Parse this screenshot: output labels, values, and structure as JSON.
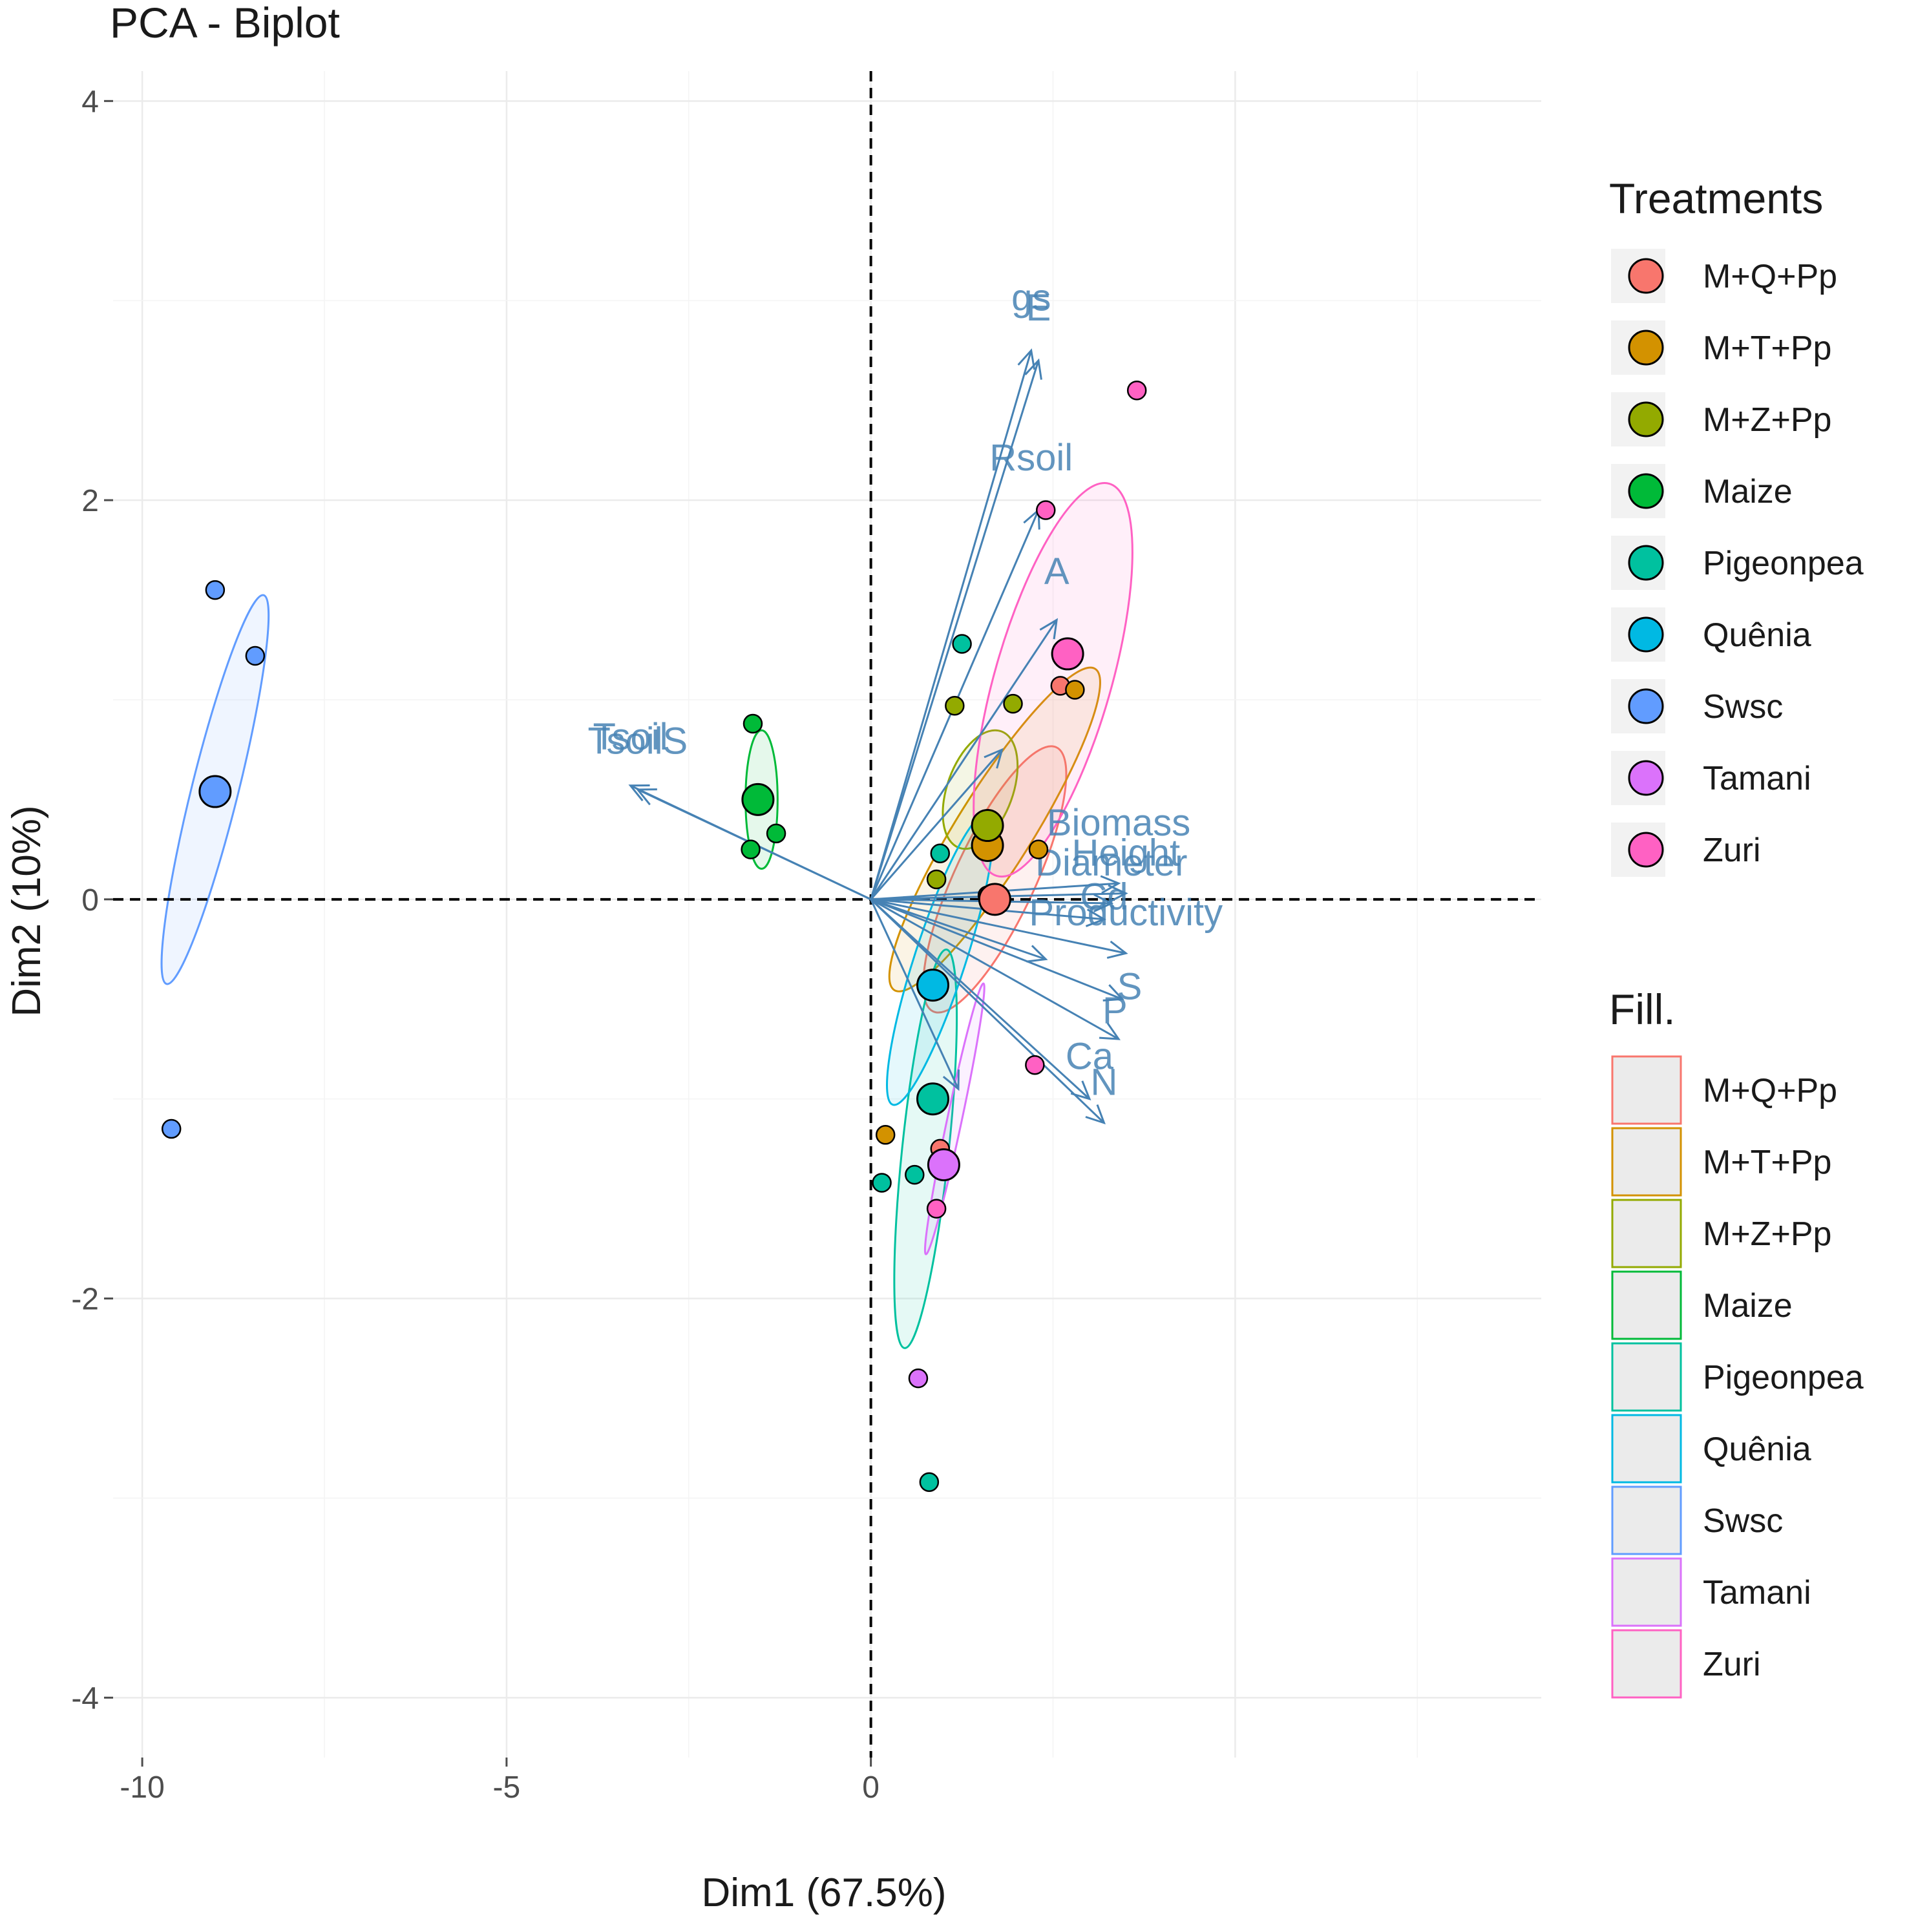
{
  "chart_data": {
    "type": "scatter",
    "title": "PCA - Biplot",
    "xlabel": "Dim1 (67.5%)",
    "ylabel": "Dim2 (10%)",
    "xlim": [
      -10.4,
      9.2
    ],
    "ylim": [
      -4.3,
      4.15
    ],
    "xticks": [
      -10,
      -5,
      0
    ],
    "xtick_labels": [
      "-10",
      "-5",
      "0"
    ],
    "yticks": [
      4,
      2,
      0,
      -2,
      -4
    ],
    "ytick_labels": [
      "4",
      "2",
      "0",
      "-2",
      "-4"
    ],
    "legend_position": "right",
    "legend_treatments_title": "Treatments",
    "legend_fill_title": "Fill.",
    "treatments": [
      "M+Q+Pp",
      "M+T+Pp",
      "M+Z+Pp",
      "Maize",
      "Pigeonpea",
      "Quênia",
      "Swsc",
      "Tamani",
      "Zuri"
    ],
    "colors": {
      "M+Q+Pp": "#F8766D",
      "M+T+Pp": "#D39200",
      "M+Z+Pp": "#93AA00",
      "Maize": "#00BA38",
      "Pigeonpea": "#00C19F",
      "Quênia": "#00B9E3",
      "Swsc": "#619CFF",
      "Tamani": "#DB72FB",
      "Zuri": "#FF61C3"
    },
    "groups": [
      {
        "name": "M+Q+Pp",
        "centroid": [
          1.7,
          0.0
        ],
        "points": [
          [
            2.6,
            1.07
          ],
          [
            1.6,
            0.02
          ],
          [
            0.95,
            -1.25
          ]
        ],
        "ellipse": {
          "cx": 1.7,
          "cy": 0.1,
          "rx": 2.0,
          "ry": 0.55,
          "angle": 65
        }
      },
      {
        "name": "M+T+Pp",
        "centroid": [
          1.6,
          0.27
        ],
        "points": [
          [
            2.3,
            0.25
          ],
          [
            2.8,
            1.05
          ],
          [
            0.2,
            -1.18
          ]
        ],
        "ellipse": {
          "cx": 1.7,
          "cy": 0.35,
          "rx": 2.6,
          "ry": 0.52,
          "angle": 58
        }
      },
      {
        "name": "M+Z+Pp",
        "centroid": [
          1.6,
          0.37
        ],
        "points": [
          [
            1.15,
            0.97
          ],
          [
            1.95,
            0.98
          ],
          [
            0.9,
            0.1
          ]
        ],
        "ellipse": {
          "cx": 1.5,
          "cy": 0.55,
          "rx": 0.85,
          "ry": 0.45,
          "angle": 70
        }
      },
      {
        "name": "Maize",
        "centroid": [
          -1.55,
          0.5
        ],
        "points": [
          [
            -1.62,
            0.88
          ],
          [
            -1.3,
            0.33
          ],
          [
            -1.65,
            0.25
          ]
        ],
        "ellipse": {
          "cx": -1.5,
          "cy": 0.5,
          "rx": 0.95,
          "ry": 0.22,
          "angle": 90
        }
      },
      {
        "name": "Pigeonpea",
        "centroid": [
          0.85,
          -1.0
        ],
        "points": [
          [
            1.25,
            1.28
          ],
          [
            0.6,
            -1.38
          ],
          [
            0.15,
            -1.42
          ],
          [
            0.8,
            -2.92
          ],
          [
            0.95,
            0.23
          ]
        ],
        "ellipse": {
          "cx": 0.75,
          "cy": -1.25,
          "rx": 2.75,
          "ry": 0.32,
          "angle": 84
        }
      },
      {
        "name": "Quênia",
        "centroid": [
          0.85,
          -0.43
        ],
        "points": [],
        "ellipse": {
          "cx": 0.95,
          "cy": -0.3,
          "rx": 2.1,
          "ry": 0.35,
          "angle": 72
        }
      },
      {
        "name": "Swsc",
        "centroid": [
          -9.0,
          0.54
        ],
        "points": [
          [
            -9.0,
            1.55
          ],
          [
            -8.45,
            1.22
          ],
          [
            -9.6,
            -1.15
          ]
        ],
        "ellipse": {
          "cx": -9.0,
          "cy": 0.55,
          "rx": 2.75,
          "ry": 0.32,
          "angle": 76
        }
      },
      {
        "name": "Tamani",
        "centroid": [
          1.0,
          -1.33
        ],
        "points": [
          [
            0.65,
            -2.4
          ]
        ],
        "ellipse": {
          "cx": 1.15,
          "cy": -1.1,
          "rx": 1.9,
          "ry": 0.1,
          "angle": 78
        }
      },
      {
        "name": "Zuri",
        "centroid": [
          2.7,
          1.23
        ],
        "points": [
          [
            3.65,
            2.55
          ],
          [
            2.4,
            1.95
          ],
          [
            2.25,
            -0.83
          ],
          [
            0.9,
            -1.55
          ]
        ],
        "ellipse": {
          "cx": 2.5,
          "cy": 1.1,
          "rx": 2.8,
          "ry": 0.8,
          "angle": 74
        }
      }
    ],
    "variables": [
      {
        "label": "gs",
        "end": [
          2.2,
          2.75
        ],
        "label_pos": [
          2.2,
          2.95
        ]
      },
      {
        "label": "E",
        "end": [
          2.3,
          2.7
        ],
        "label_pos": [
          2.3,
          2.9
        ]
      },
      {
        "label": "Rsoil",
        "end": [
          2.3,
          1.95
        ],
        "label_pos": [
          2.2,
          2.15
        ]
      },
      {
        "label": "A",
        "end": [
          2.55,
          1.4
        ],
        "label_pos": [
          2.55,
          1.58
        ]
      },
      {
        "label": "Tsoil",
        "end": [
          -3.3,
          0.57
        ],
        "label_pos": [
          -3.3,
          0.75
        ]
      },
      {
        "label": "TsoilS",
        "end": [
          -3.2,
          0.55
        ],
        "label_pos": [
          -3.2,
          0.73
        ]
      },
      {
        "label": "Biomass",
        "end": [
          3.4,
          0.08
        ],
        "label_pos": [
          3.4,
          0.32
        ]
      },
      {
        "label": "Height",
        "end": [
          3.5,
          0.03
        ],
        "label_pos": [
          3.5,
          0.17
        ]
      },
      {
        "label": "Diameter",
        "end": [
          3.3,
          -0.02
        ],
        "label_pos": [
          3.3,
          0.12
        ]
      },
      {
        "label": "Productivity",
        "end": [
          3.5,
          -0.27
        ],
        "label_pos": [
          3.5,
          -0.13
        ]
      },
      {
        "label": "Cd",
        "end": [
          3.2,
          -0.1
        ],
        "label_pos": [
          3.2,
          -0.05
        ]
      },
      {
        "label": "S",
        "end": [
          3.45,
          -0.5
        ],
        "label_pos": [
          3.55,
          -0.5
        ]
      },
      {
        "label": "P",
        "end": [
          3.4,
          -0.7
        ],
        "label_pos": [
          3.35,
          -0.62
        ]
      },
      {
        "label": "Ca",
        "end": [
          3.0,
          -1.0
        ],
        "label_pos": [
          3.0,
          -0.85
        ]
      },
      {
        "label": "N",
        "end": [
          3.2,
          -1.12
        ],
        "label_pos": [
          3.2,
          -0.98
        ]
      },
      {
        "label": "",
        "end": [
          1.8,
          0.75
        ],
        "label_pos": [
          1.8,
          0.75
        ]
      },
      {
        "label": "",
        "end": [
          1.2,
          -0.95
        ],
        "label_pos": [
          1.2,
          -0.95
        ]
      },
      {
        "label": "",
        "end": [
          2.4,
          -0.3
        ],
        "label_pos": [
          2.4,
          -0.3
        ]
      }
    ]
  }
}
